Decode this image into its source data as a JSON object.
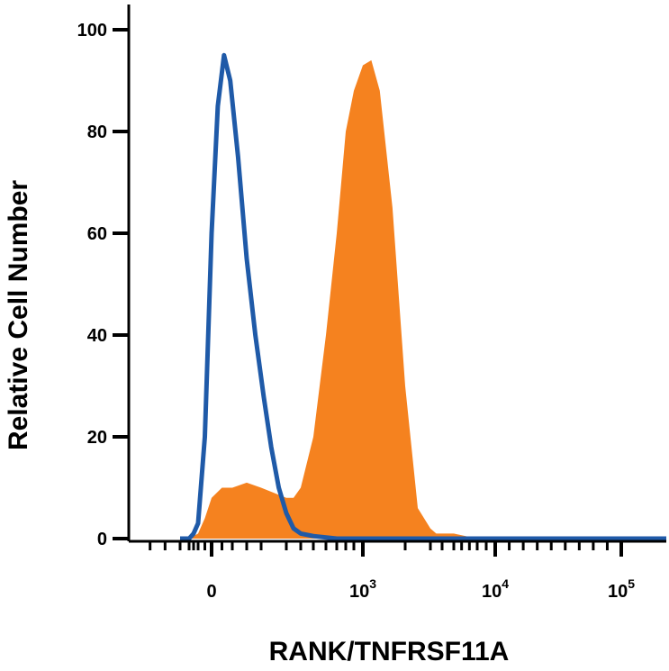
{
  "chart_data": {
    "type": "area",
    "title": "",
    "xlabel": "RANK/TNFRSF11A",
    "ylabel": "Relative Cell Number",
    "x_scale": "biexponential",
    "x_ticks": [
      {
        "value": "0",
        "base": "0",
        "exp": ""
      },
      {
        "value": "1000",
        "base": "10",
        "exp": "3"
      },
      {
        "value": "10000",
        "base": "10",
        "exp": "4"
      },
      {
        "value": "100000",
        "base": "10",
        "exp": "5"
      }
    ],
    "y_ticks": [
      "0",
      "20",
      "40",
      "60",
      "80",
      "100"
    ],
    "ylim": [
      0,
      100
    ],
    "grid": false,
    "legend": "none",
    "series": [
      {
        "style": "filled",
        "color": "#f5821f",
        "x": [
          -200,
          -100,
          -50,
          0,
          50,
          100,
          150,
          200,
          250,
          300,
          350,
          400,
          500,
          600,
          700,
          800,
          900,
          1000,
          1200,
          1400,
          1700,
          2000,
          2500,
          3000,
          3500,
          5000,
          8000
        ],
        "y": [
          0,
          1,
          4,
          8,
          10,
          10,
          11,
          10,
          9,
          8,
          8,
          10,
          20,
          40,
          60,
          80,
          88,
          93,
          94,
          88,
          65,
          30,
          6,
          2,
          1,
          1,
          0
        ]
      },
      {
        "style": "outline",
        "color": "#1f5aa8",
        "x": [
          -300,
          -200,
          -150,
          -100,
          -50,
          0,
          30,
          60,
          90,
          120,
          150,
          180,
          210,
          240,
          270,
          300,
          350,
          400,
          500,
          700
        ],
        "y": [
          0,
          0,
          1,
          3,
          20,
          60,
          85,
          95,
          90,
          75,
          55,
          40,
          28,
          18,
          10,
          5,
          2,
          1,
          0.5,
          0
        ]
      }
    ]
  }
}
